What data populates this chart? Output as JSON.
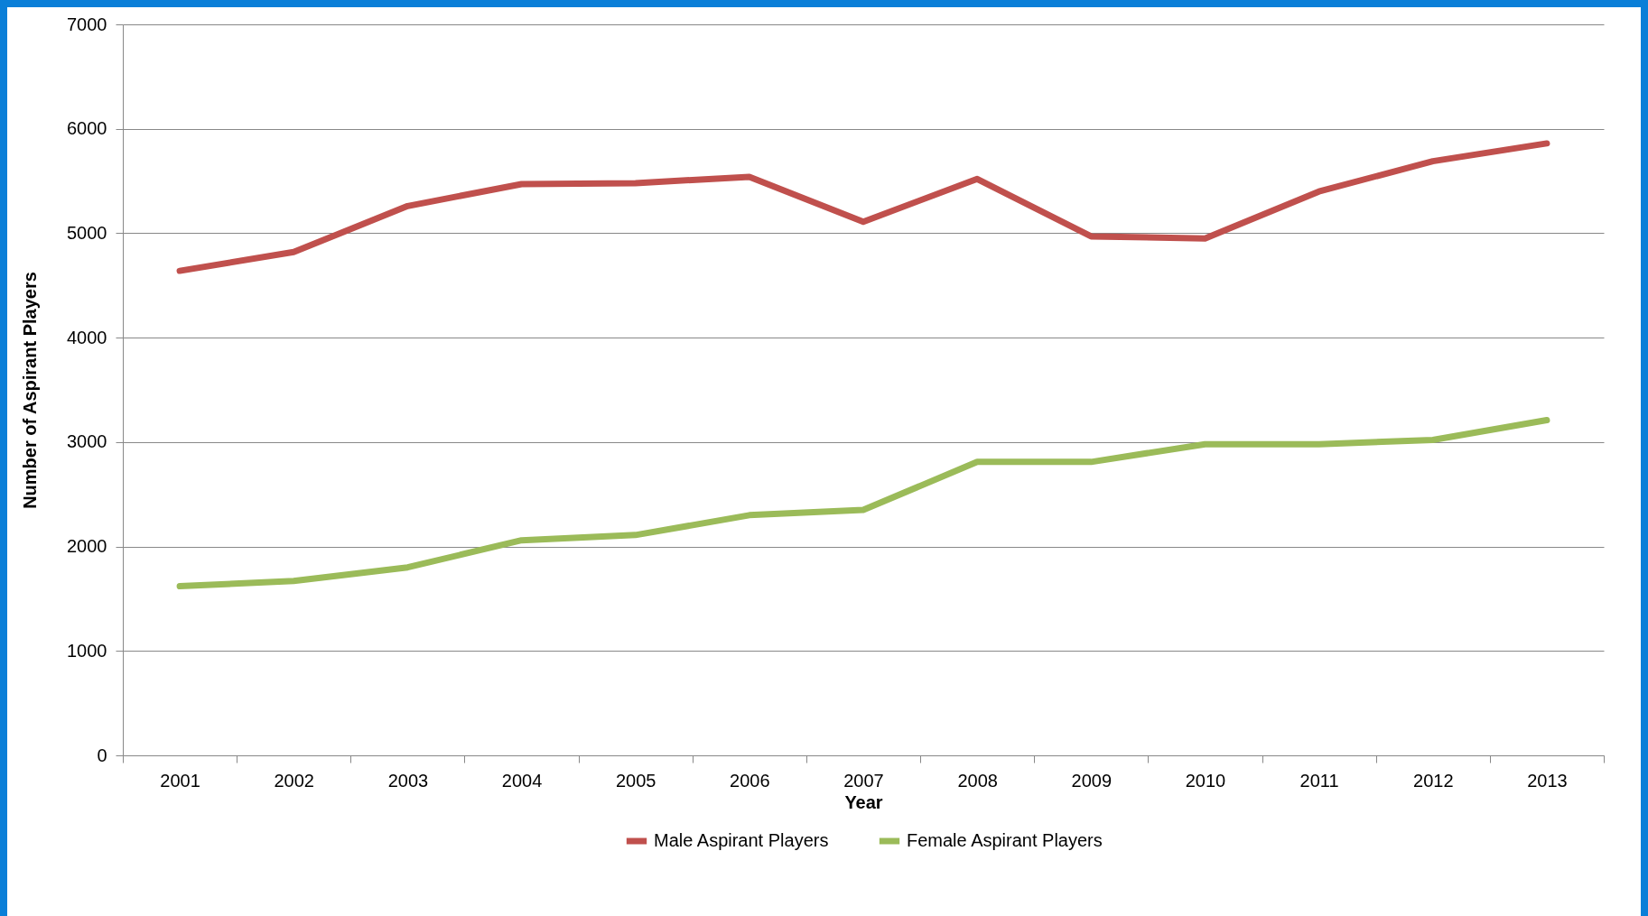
{
  "chart_data": {
    "type": "line",
    "xlabel": "Year",
    "ylabel": "Number of Aspirant Players",
    "categories": [
      "2001",
      "2002",
      "2003",
      "2004",
      "2005",
      "2006",
      "2007",
      "2008",
      "2009",
      "2010",
      "2011",
      "2012",
      "2013"
    ],
    "series": [
      {
        "name": "Male Aspirant Players",
        "color": "#c0504d",
        "values": [
          4640,
          4820,
          5260,
          5470,
          5480,
          5540,
          5110,
          5520,
          4970,
          4950,
          5400,
          5690,
          5860
        ]
      },
      {
        "name": "Female Aspirant Players",
        "color": "#9bbb59",
        "values": [
          1620,
          1670,
          1800,
          2060,
          2110,
          2300,
          2350,
          2810,
          2810,
          2980,
          2980,
          3020,
          3210
        ]
      }
    ],
    "ylim": [
      0,
      7000
    ],
    "yticks": [
      0,
      1000,
      2000,
      3000,
      4000,
      5000,
      6000,
      7000
    ],
    "grid": "y",
    "legend": "bottom",
    "marker": "none",
    "line_style": "solid"
  }
}
